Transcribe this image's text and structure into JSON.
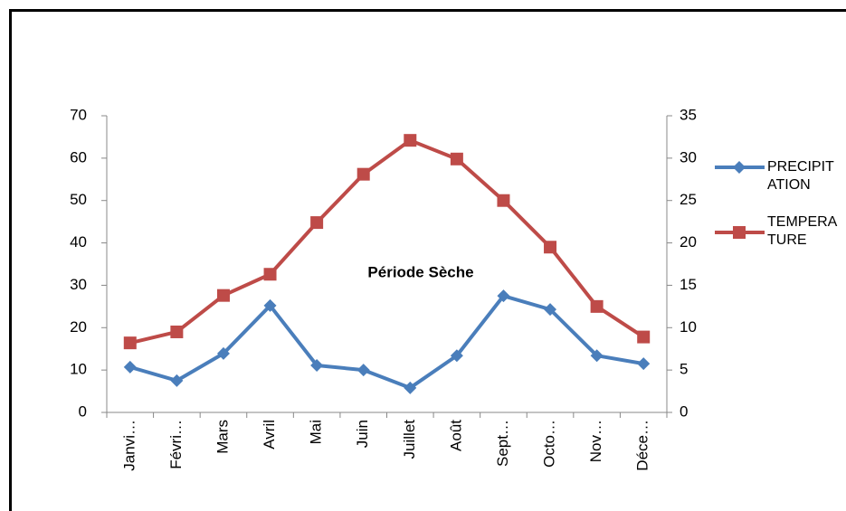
{
  "chart_data": {
    "type": "line",
    "categories": [
      "Janvi…",
      "Févri…",
      "Mars",
      "Avril",
      "Mai",
      "Juin",
      "Juillet",
      "Août",
      "Sept…",
      "Octo…",
      "Nov…",
      "Déce…"
    ],
    "series": [
      {
        "name": "PRECIPITATION",
        "color": "#4a7ebb",
        "marker": "diamond",
        "values": [
          10.7,
          7.5,
          13.9,
          25.2,
          11.1,
          10.0,
          5.8,
          13.4,
          27.5,
          24.3,
          13.4,
          11.5
        ]
      },
      {
        "name": "TEMPERATURE",
        "color": "#be4b48",
        "marker": "square",
        "axis": "y2",
        "values": [
          8.2,
          9.5,
          13.8,
          16.3,
          22.4,
          28.1,
          32.1,
          29.9,
          25.0,
          19.5,
          12.5,
          8.9
        ]
      }
    ],
    "annotations": [
      "Période Sèche"
    ],
    "ylim": [
      0,
      70
    ],
    "yticks": [
      0,
      10,
      20,
      30,
      40,
      50,
      60,
      70
    ],
    "y2lim": [
      0,
      35
    ],
    "y2ticks": [
      0,
      5,
      10,
      15,
      20,
      25,
      30,
      35
    ],
    "grid": false,
    "legend": "right"
  }
}
